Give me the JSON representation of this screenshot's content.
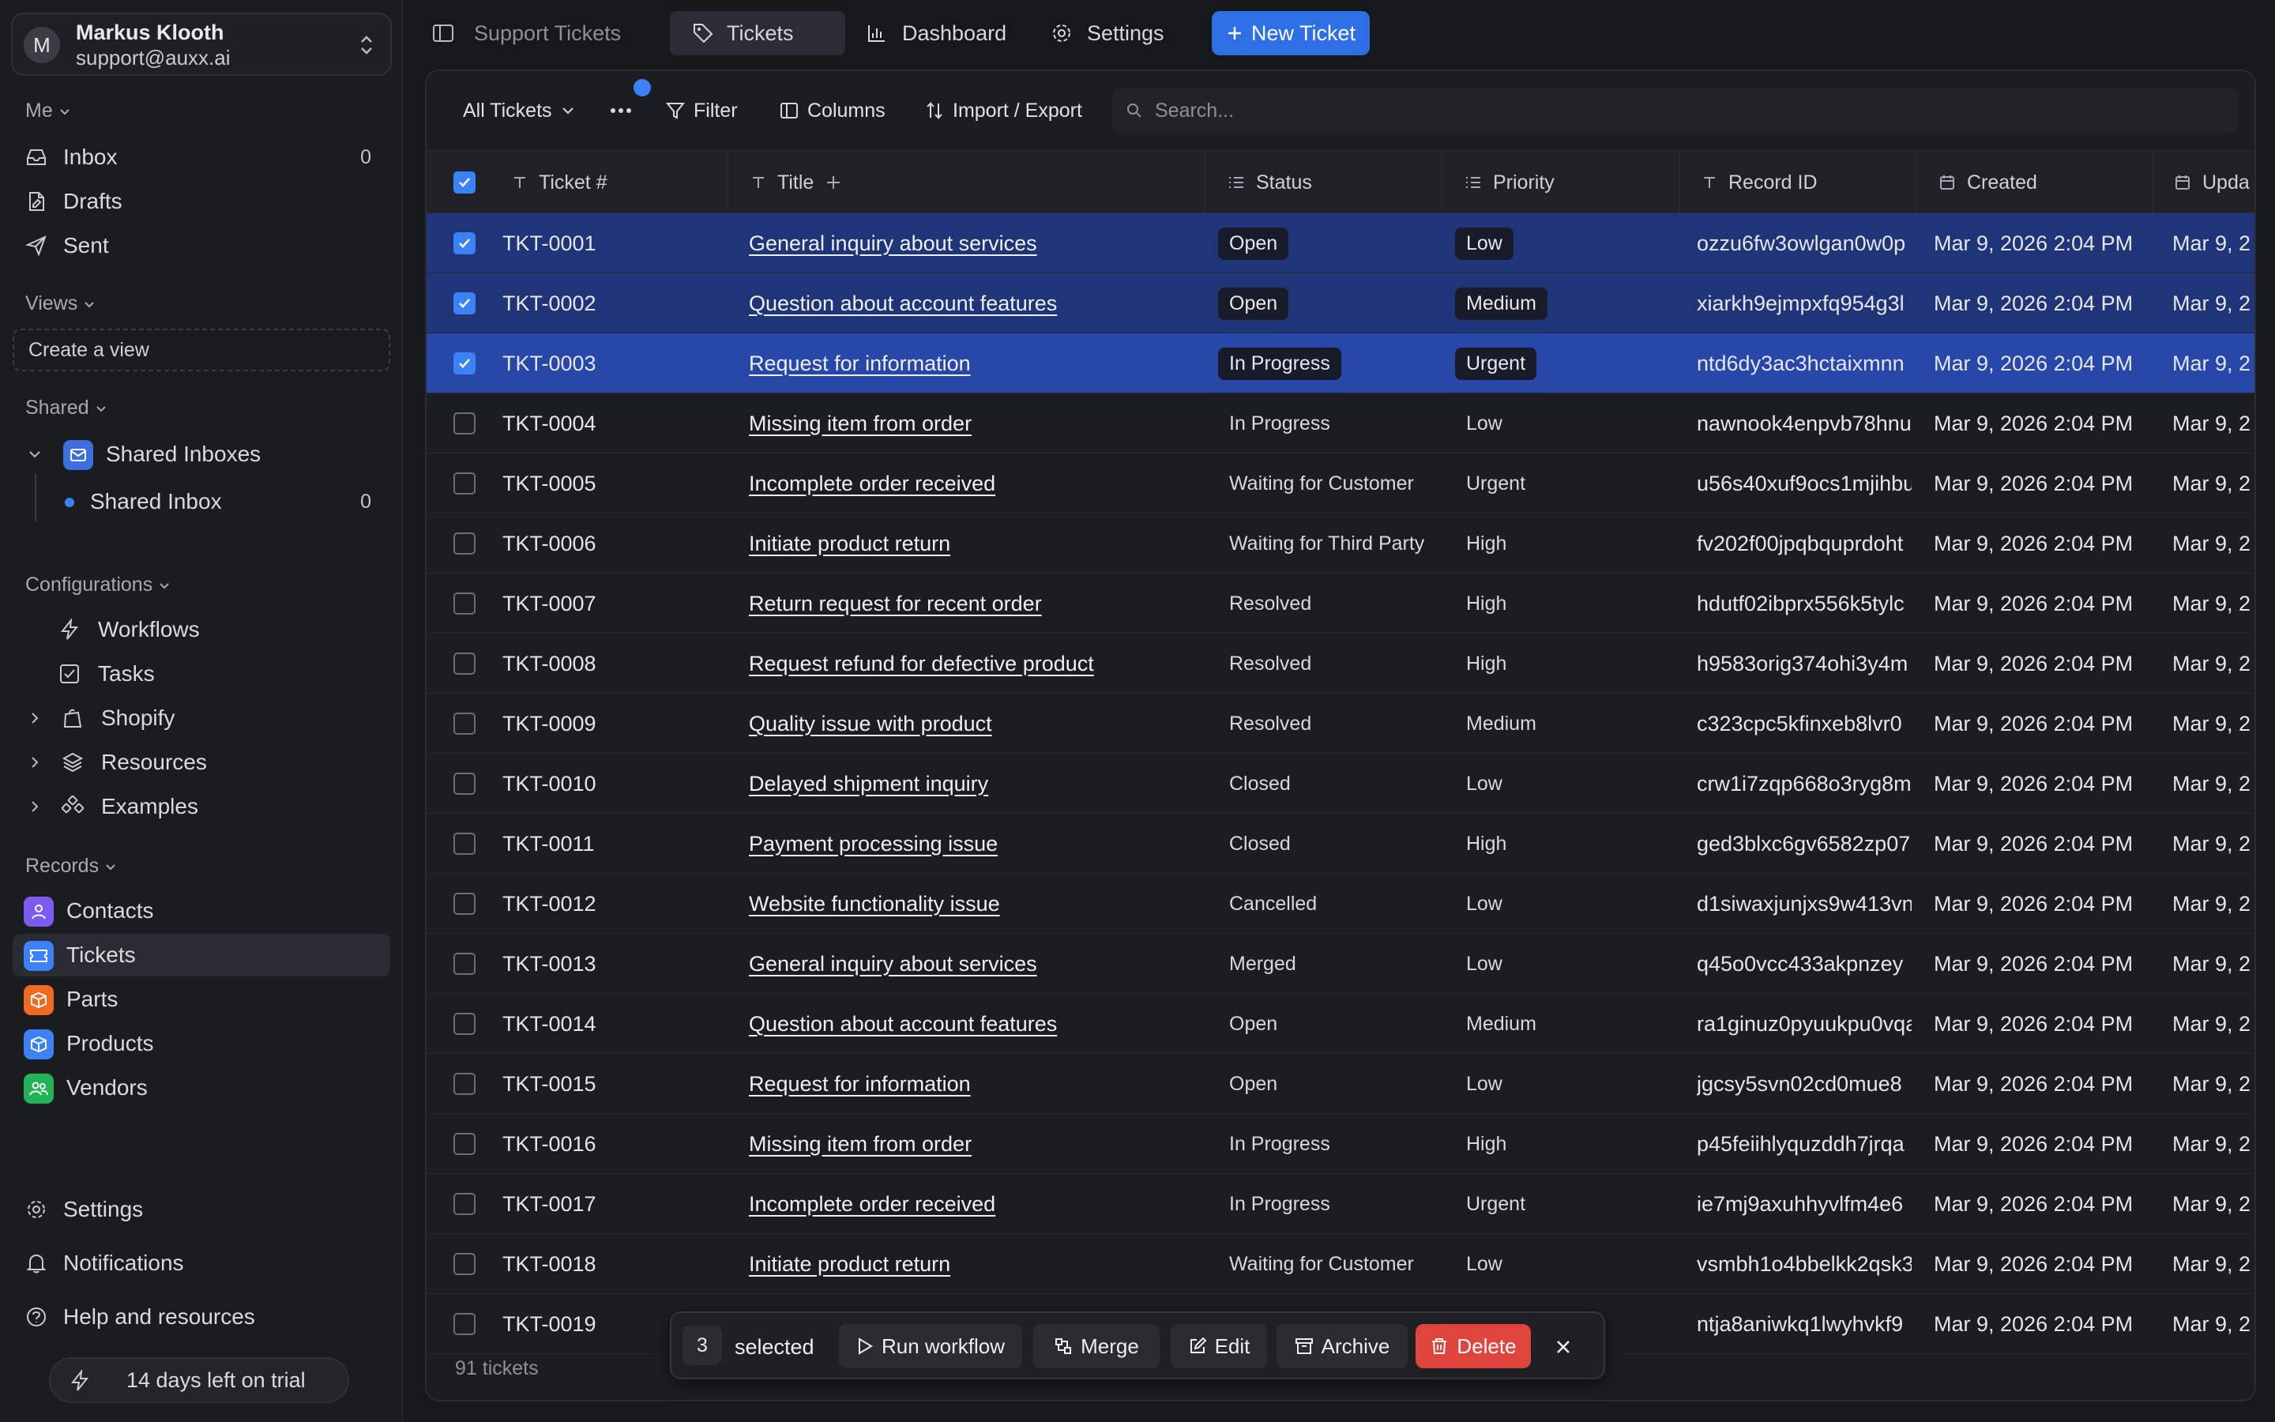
{
  "account": {
    "initial": "M",
    "name": "Markus Klooth",
    "email": "support@auxx.ai"
  },
  "sidebar": {
    "me_label": "Me",
    "me_items": [
      {
        "label": "Inbox",
        "count": "0",
        "icon": "inbox-icon"
      },
      {
        "label": "Drafts",
        "icon": "drafts-icon"
      },
      {
        "label": "Sent",
        "icon": "send-icon"
      }
    ],
    "views_label": "Views",
    "create_view": "Create a view",
    "shared_label": "Shared",
    "shared_inboxes": "Shared Inboxes",
    "shared_inbox": "Shared Inbox",
    "shared_inbox_count": "0",
    "config_label": "Configurations",
    "config_items": [
      {
        "label": "Workflows",
        "icon": "bolt-icon"
      },
      {
        "label": "Tasks",
        "icon": "checkbox-icon"
      },
      {
        "label": "Shopify",
        "icon": "shopify-icon"
      },
      {
        "label": "Resources",
        "icon": "layers-icon"
      },
      {
        "label": "Examples",
        "icon": "shapes-icon"
      }
    ],
    "records_label": "Records",
    "records_items": [
      {
        "label": "Contacts",
        "color": "#7c5cf0",
        "icon": "person-icon"
      },
      {
        "label": "Tickets",
        "color": "#3b82f6",
        "icon": "ticket-icon"
      },
      {
        "label": "Parts",
        "color": "#f06a24",
        "icon": "box-icon"
      },
      {
        "label": "Products",
        "color": "#3b82f6",
        "icon": "cube-icon"
      },
      {
        "label": "Vendors",
        "color": "#22b357",
        "icon": "people-icon"
      }
    ],
    "bottom_items": [
      {
        "label": "Settings",
        "icon": "gear-icon"
      },
      {
        "label": "Notifications",
        "icon": "bell-icon"
      },
      {
        "label": "Help and resources",
        "icon": "help-icon"
      }
    ],
    "trial": "14 days left on trial"
  },
  "topbar": {
    "section_title": "Support Tickets",
    "tabs": [
      "Tickets",
      "Dashboard",
      "Settings"
    ],
    "new_ticket": "New Ticket"
  },
  "toolbar": {
    "view": "All Tickets",
    "filter": "Filter",
    "columns": "Columns",
    "import_export": "Import / Export",
    "search_placeholder": "Search..."
  },
  "table": {
    "headers": [
      "Ticket #",
      "Title",
      "Status",
      "Priority",
      "Record ID",
      "Created",
      "Upda"
    ],
    "rows": [
      {
        "id": "TKT-0001",
        "title": "General inquiry about services",
        "status": "Open",
        "priority": "Low",
        "record": "ozzu6fw3owlgan0w0p",
        "created": "Mar 9, 2026 2:04 PM",
        "updated": "Mar 9, 2",
        "selected": true
      },
      {
        "id": "TKT-0002",
        "title": "Question about account features",
        "status": "Open",
        "priority": "Medium",
        "record": "xiarkh9ejmpxfq954g3l",
        "created": "Mar 9, 2026 2:04 PM",
        "updated": "Mar 9, 2",
        "selected": true
      },
      {
        "id": "TKT-0003",
        "title": "Request for information",
        "status": "In Progress",
        "priority": "Urgent",
        "record": "ntd6dy3ac3hctaixmnn",
        "created": "Mar 9, 2026 2:04 PM",
        "updated": "Mar 9, 2",
        "selected": true
      },
      {
        "id": "TKT-0004",
        "title": "Missing item from order",
        "status": "In Progress",
        "priority": "Low",
        "record": "nawnook4enpvb78hnu",
        "created": "Mar 9, 2026 2:04 PM",
        "updated": "Mar 9, 2",
        "selected": false
      },
      {
        "id": "TKT-0005",
        "title": "Incomplete order received",
        "status": "Waiting for Customer",
        "priority": "Urgent",
        "record": "u56s40xuf9ocs1mjihbu",
        "created": "Mar 9, 2026 2:04 PM",
        "updated": "Mar 9, 2",
        "selected": false
      },
      {
        "id": "TKT-0006",
        "title": "Initiate product return",
        "status": "Waiting for Third Party",
        "priority": "High",
        "record": "fv202f00jpqbquprdoht",
        "created": "Mar 9, 2026 2:04 PM",
        "updated": "Mar 9, 2",
        "selected": false
      },
      {
        "id": "TKT-0007",
        "title": "Return request for recent order",
        "status": "Resolved",
        "priority": "High",
        "record": "hdutf02ibprx556k5tylc",
        "created": "Mar 9, 2026 2:04 PM",
        "updated": "Mar 9, 2",
        "selected": false
      },
      {
        "id": "TKT-0008",
        "title": "Request refund for defective product",
        "status": "Resolved",
        "priority": "High",
        "record": "h9583orig374ohi3y4m",
        "created": "Mar 9, 2026 2:04 PM",
        "updated": "Mar 9, 2",
        "selected": false
      },
      {
        "id": "TKT-0009",
        "title": "Quality issue with product",
        "status": "Resolved",
        "priority": "Medium",
        "record": "c323cpc5kfinxeb8lvr0",
        "created": "Mar 9, 2026 2:04 PM",
        "updated": "Mar 9, 2",
        "selected": false
      },
      {
        "id": "TKT-0010",
        "title": "Delayed shipment inquiry",
        "status": "Closed",
        "priority": "Low",
        "record": "crw1i7zqp668o3ryg8m",
        "created": "Mar 9, 2026 2:04 PM",
        "updated": "Mar 9, 2",
        "selected": false
      },
      {
        "id": "TKT-0011",
        "title": "Payment processing issue",
        "status": "Closed",
        "priority": "High",
        "record": "ged3blxc6gv6582zp07",
        "created": "Mar 9, 2026 2:04 PM",
        "updated": "Mar 9, 2",
        "selected": false
      },
      {
        "id": "TKT-0012",
        "title": "Website functionality issue",
        "status": "Cancelled",
        "priority": "Low",
        "record": "d1siwaxjunjxs9w413vn",
        "created": "Mar 9, 2026 2:04 PM",
        "updated": "Mar 9, 2",
        "selected": false
      },
      {
        "id": "TKT-0013",
        "title": "General inquiry about services",
        "status": "Merged",
        "priority": "Low",
        "record": "q45o0vcc433akpnzey",
        "created": "Mar 9, 2026 2:04 PM",
        "updated": "Mar 9, 2",
        "selected": false
      },
      {
        "id": "TKT-0014",
        "title": "Question about account features",
        "status": "Open",
        "priority": "Medium",
        "record": "ra1ginuz0pyuukpu0vqa",
        "created": "Mar 9, 2026 2:04 PM",
        "updated": "Mar 9, 2",
        "selected": false
      },
      {
        "id": "TKT-0015",
        "title": "Request for information",
        "status": "Open",
        "priority": "Low",
        "record": "jgcsy5svn02cd0mue8",
        "created": "Mar 9, 2026 2:04 PM",
        "updated": "Mar 9, 2",
        "selected": false
      },
      {
        "id": "TKT-0016",
        "title": "Missing item from order",
        "status": "In Progress",
        "priority": "High",
        "record": "p45feiihlyquzddh7jrqa",
        "created": "Mar 9, 2026 2:04 PM",
        "updated": "Mar 9, 2",
        "selected": false
      },
      {
        "id": "TKT-0017",
        "title": "Incomplete order received",
        "status": "In Progress",
        "priority": "Urgent",
        "record": "ie7mj9axuhhyvlfm4e6",
        "created": "Mar 9, 2026 2:04 PM",
        "updated": "Mar 9, 2",
        "selected": false
      },
      {
        "id": "TKT-0018",
        "title": "Initiate product return",
        "status": "Waiting for Customer",
        "priority": "Low",
        "record": "vsmbh1o4bbelkk2qsk3",
        "created": "Mar 9, 2026 2:04 PM",
        "updated": "Mar 9, 2",
        "selected": false
      },
      {
        "id": "TKT-0019",
        "title": "",
        "status": "",
        "priority": "",
        "record": "ntja8aniwkq1lwyhvkf9",
        "created": "Mar 9, 2026 2:04 PM",
        "updated": "Mar 9, 2",
        "selected": false
      }
    ],
    "footer": "91 tickets"
  },
  "actionbar": {
    "count": "3",
    "selected_label": "selected",
    "run_workflow": "Run workflow",
    "merge": "Merge",
    "edit": "Edit",
    "archive": "Archive",
    "delete": "Delete"
  },
  "colors": {
    "accent": "#2f6fe6",
    "danger": "#e0453d",
    "selection": "#1f3578"
  }
}
